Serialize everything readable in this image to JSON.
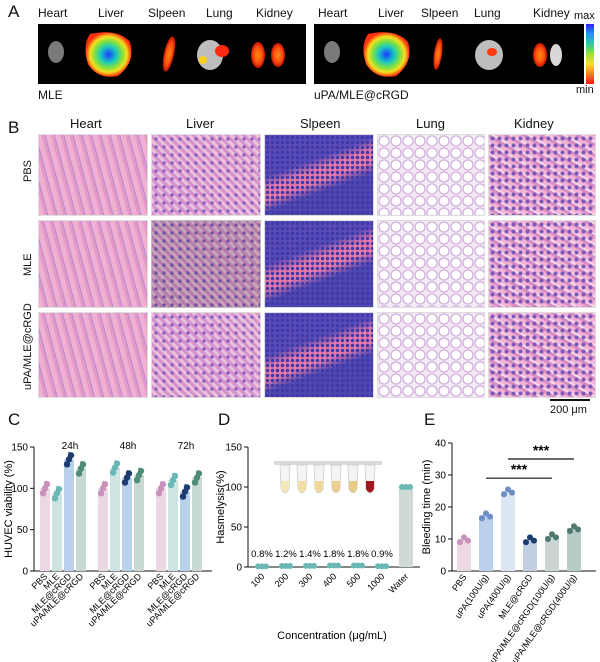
{
  "panel_labels": {
    "a": "A",
    "b": "B",
    "c": "C",
    "d": "D",
    "e": "E"
  },
  "panel_a": {
    "organs_left": [
      "Heart",
      "Liver",
      "Slpeen",
      "Lung",
      "Kidney"
    ],
    "organs_right": [
      "Heart",
      "Liver",
      "Slpeen",
      "Lung",
      "Kidney"
    ],
    "label_left": "MLE",
    "label_right": "uPA/MLE@cRGD",
    "scale_max": "max",
    "scale_min": "min"
  },
  "panel_b": {
    "columns": [
      "Heart",
      "Liver",
      "Slpeen",
      "Lung",
      "Kidney"
    ],
    "rows": [
      "PBS",
      "MLE",
      "uPA/MLE@cRGD"
    ],
    "scale_bar": "200 μm"
  },
  "chart_data": [
    {
      "type": "bar",
      "panel": "C",
      "ylabel": "HUVEC viability (%)",
      "ylim": [
        0,
        150
      ],
      "yticks": [
        0,
        50,
        100,
        150
      ],
      "groups": [
        "24h",
        "48h",
        "72h"
      ],
      "categories": [
        "PBS",
        "MLE",
        "MLE@cRGD",
        "uPA/MLE@cRGD"
      ],
      "values": [
        [
          100,
          94,
          135,
          124
        ],
        [
          100,
          125,
          113,
          116
        ],
        [
          100,
          110,
          96,
          113
        ]
      ],
      "colors": [
        "#ecd8e4",
        "#cde4e2",
        "#b9d1ea",
        "#c8d8d3"
      ],
      "point_colors": [
        "#c992bd",
        "#6ab8b6",
        "#1d3c72",
        "#4f8c78"
      ]
    },
    {
      "type": "bar",
      "panel": "D",
      "xlabel": "Concentration (μg/mL)",
      "ylabel": "Hasmelysis(%)",
      "ylim": [
        0,
        150
      ],
      "yticks": [
        0,
        50,
        100,
        150
      ],
      "categories": [
        "100",
        "200",
        "300",
        "400",
        "500",
        "1000",
        "Water"
      ],
      "values": [
        0.8,
        1.2,
        1.4,
        1.8,
        1.8,
        0.9,
        100
      ],
      "annotations": [
        "0.8%",
        "1.2%",
        "1.4%",
        "1.8%",
        "1.8%",
        "0.9%"
      ],
      "bar_color": "#cfd9d6",
      "point_color": "#6ab8b6"
    },
    {
      "type": "bar",
      "panel": "E",
      "ylabel": "Bleeding time (min)",
      "ylim": [
        0,
        40
      ],
      "yticks": [
        0,
        10,
        20,
        30,
        40
      ],
      "categories": [
        "PBS",
        "uPA(100U/g)",
        "uPA(400U/g)",
        "MLE@cRGD",
        "uPA/MLE@cRGD(100U/g)",
        "uPA/MLE@cRGD(400U/g)"
      ],
      "values": [
        10,
        17.5,
        25,
        10,
        11,
        13.5
      ],
      "colors": [
        "#ecd8e4",
        "#b9d1ea",
        "#dbe6f3",
        "#c2cfe2",
        "#c9d6d4",
        "#b8ccc7"
      ],
      "point_colors": [
        "#c992bd",
        "#6d8fc6",
        "#6d8fc6",
        "#1d3c72",
        "#4f7a72",
        "#4f7a72"
      ],
      "significance": [
        "***",
        "***"
      ]
    }
  ]
}
